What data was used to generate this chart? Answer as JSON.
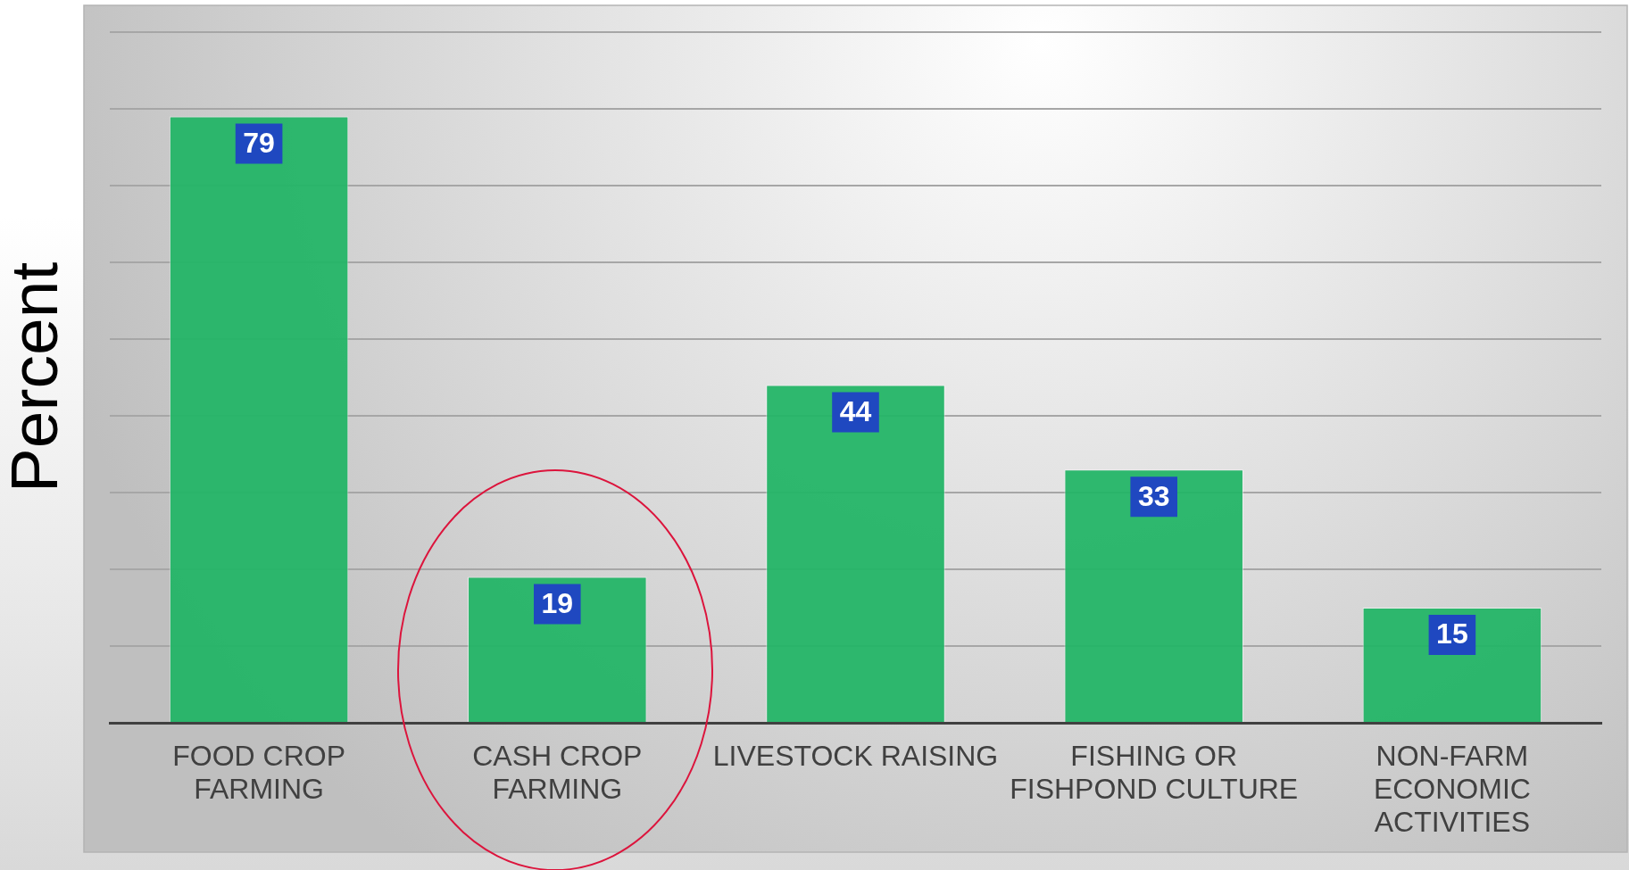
{
  "chart_data": {
    "type": "bar",
    "ylabel": "Percent",
    "categories": [
      "FOOD CROP FARMING",
      "CASH CROP FARMING",
      "LIVESTOCK RAISING",
      "FISHING OR FISHPOND CULTURE",
      "NON-FARM ECONOMIC ACTIVITIES"
    ],
    "values": [
      79,
      19,
      44,
      33,
      15
    ],
    "color": "#22b566",
    "ylim": [
      0,
      90
    ],
    "grid": "y",
    "tick_labels": "x",
    "data_labels": true
  }
}
